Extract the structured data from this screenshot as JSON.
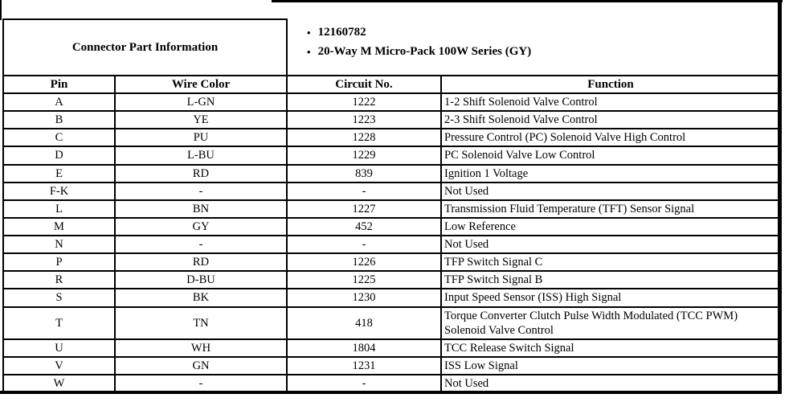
{
  "connector_info": {
    "title": "Connector Part Information",
    "bullet_icon": "•",
    "bullets": [
      "12160782",
      "20-Way M Micro-Pack 100W Series (GY)"
    ]
  },
  "pin_table": {
    "headers": [
      "Pin",
      "Wire Color",
      "Circuit No.",
      "Function"
    ],
    "rows": [
      {
        "pin": "A",
        "wire_color": "L-GN",
        "circuit": "1222",
        "function": "1-2 Shift Solenoid Valve Control"
      },
      {
        "pin": "B",
        "wire_color": "YE",
        "circuit": "1223",
        "function": "2-3 Shift Solenoid Valve Control"
      },
      {
        "pin": "C",
        "wire_color": "PU",
        "circuit": "1228",
        "function": "Pressure Control (PC) Solenoid Valve High Control"
      },
      {
        "pin": "D",
        "wire_color": "L-BU",
        "circuit": "1229",
        "function": "PC Solenoid Valve Low Control"
      },
      {
        "pin": "E",
        "wire_color": "RD",
        "circuit": "839",
        "function": "Ignition 1 Voltage"
      },
      {
        "pin": "F-K",
        "wire_color": "-",
        "circuit": "-",
        "function": "Not Used"
      },
      {
        "pin": "L",
        "wire_color": "BN",
        "circuit": "1227",
        "function": "Transmission Fluid Temperature (TFT) Sensor Signal"
      },
      {
        "pin": "M",
        "wire_color": "GY",
        "circuit": "452",
        "function": "Low Reference"
      },
      {
        "pin": "N",
        "wire_color": "-",
        "circuit": "-",
        "function": "Not Used"
      },
      {
        "pin": "P",
        "wire_color": "RD",
        "circuit": "1226",
        "function": "TFP Switch Signal C"
      },
      {
        "pin": "R",
        "wire_color": "D-BU",
        "circuit": "1225",
        "function": "TFP Switch Signal B"
      },
      {
        "pin": "S",
        "wire_color": "BK",
        "circuit": "1230",
        "function": "Input Speed Sensor (ISS) High Signal"
      },
      {
        "pin": "T",
        "wire_color": "TN",
        "circuit": "418",
        "function": "Torque Converter Clutch Pulse Width Modulated (TCC PWM) Solenoid Valve Control"
      },
      {
        "pin": "U",
        "wire_color": "WH",
        "circuit": "1804",
        "function": "TCC Release Switch Signal"
      },
      {
        "pin": "V",
        "wire_color": "GN",
        "circuit": "1231",
        "function": "ISS Low Signal"
      },
      {
        "pin": "W",
        "wire_color": "-",
        "circuit": "-",
        "function": "Not Used"
      }
    ]
  },
  "colors": {
    "border": "#000000",
    "background": "#ffffff",
    "text": "#000000"
  }
}
